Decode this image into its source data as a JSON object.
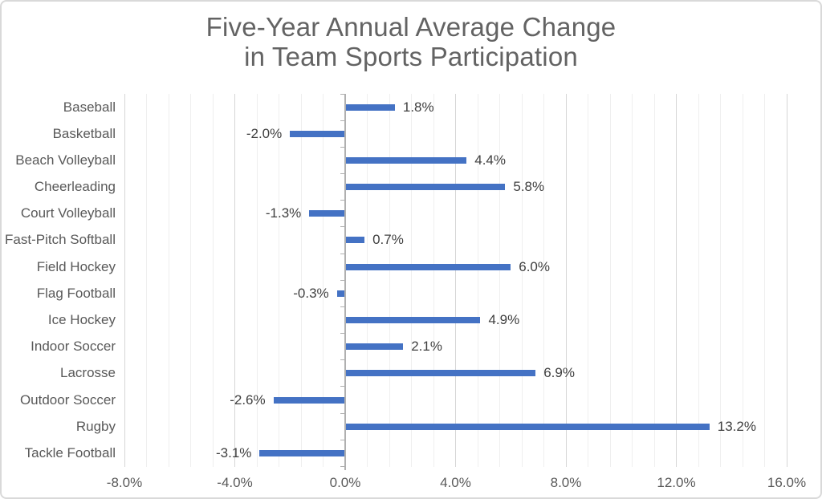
{
  "frame": {
    "background": "#ffffff",
    "border_color": "#d9d9d9"
  },
  "chart_data": {
    "type": "bar",
    "orientation": "horizontal",
    "title": "Five-Year Annual Average Change\nin Team Sports Participation",
    "categories": [
      "Baseball",
      "Basketball",
      "Beach Volleyball",
      "Cheerleading",
      "Court Volleyball",
      "Fast-Pitch Softball",
      "Field Hockey",
      "Flag Football",
      "Ice Hockey",
      "Indoor Soccer",
      "Lacrosse",
      "Outdoor Soccer",
      "Rugby",
      "Tackle Football"
    ],
    "values": [
      1.8,
      -2.0,
      4.4,
      5.8,
      -1.3,
      0.7,
      6.0,
      -0.3,
      4.9,
      2.1,
      6.9,
      -2.6,
      13.2,
      -3.1
    ],
    "value_labels": [
      "1.8%",
      "-2.0%",
      "4.4%",
      "5.8%",
      "-1.3%",
      "0.7%",
      "6.0%",
      "-0.3%",
      "4.9%",
      "2.1%",
      "6.9%",
      "-2.6%",
      "13.2%",
      "-3.1%"
    ],
    "xlabel": "",
    "ylabel": "",
    "xlim": [
      -8,
      16
    ],
    "x_major_unit": 4,
    "x_minor_unit": 0.8,
    "x_ticks": [
      {
        "value": -8,
        "label": "-8.0%"
      },
      {
        "value": -4,
        "label": "-4.0%"
      },
      {
        "value": 0,
        "label": "0.0%"
      },
      {
        "value": 4,
        "label": "4.0%"
      },
      {
        "value": 8,
        "label": "8.0%"
      },
      {
        "value": 12,
        "label": "12.0%"
      },
      {
        "value": 16,
        "label": "16.0%"
      }
    ],
    "grid": true,
    "legend_position": "none",
    "colors": {
      "bar": "#4472C4",
      "title_text": "#636363",
      "axis_text": "#595959",
      "value_label_text": "#3f3f3f",
      "major_gridline": "#d6d6d6",
      "minor_gridline": "#efefef",
      "axis_line": "#b0b0b0"
    }
  }
}
